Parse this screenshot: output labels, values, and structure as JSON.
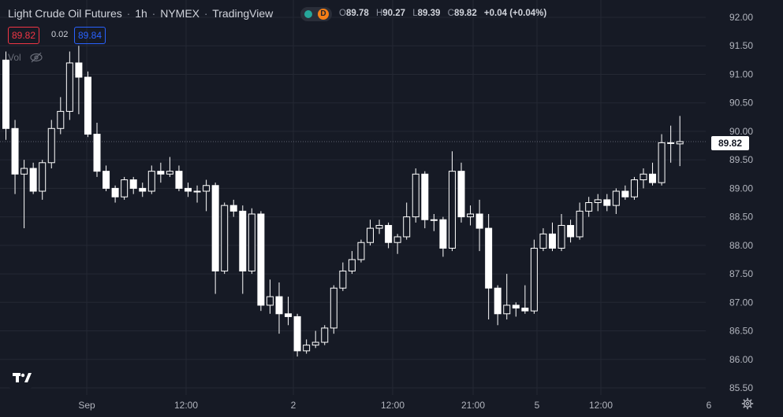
{
  "header": {
    "symbol": "Light Crude Oil Futures",
    "interval": "1h",
    "exchange": "NYMEX",
    "source": "TradingView",
    "status_letter": "D"
  },
  "ohlc": {
    "open_key": "O",
    "open": "89.78",
    "high_key": "H",
    "high": "90.27",
    "low_key": "L",
    "low": "89.39",
    "close_key": "C",
    "close": "89.82",
    "change": "+0.04 (+0.04%)"
  },
  "quote": {
    "bid": "89.82",
    "spread": "0.02",
    "ask": "89.84"
  },
  "volume_label": "Vol",
  "last_price_label": "89.82",
  "colors": {
    "background": "#161a25",
    "grid": "#242834",
    "candle": "#ffffff",
    "axis_text": "#b2b5be",
    "bid": "#f23645",
    "ask": "#2962ff"
  },
  "icons": {
    "eye": "eye-off-icon",
    "logo": "tradingview-logo-icon",
    "settings": "gear-icon"
  },
  "chart_data": {
    "type": "candlestick",
    "y_ticks": [
      "92.00",
      "91.50",
      "91.00",
      "90.50",
      "90.00",
      "89.50",
      "89.00",
      "88.50",
      "88.00",
      "87.50",
      "87.00",
      "86.50",
      "86.00",
      "85.50"
    ],
    "x_ticks": [
      "Sep",
      "12:00",
      "2",
      "12:00",
      "21:00",
      "5",
      "12:00",
      "6"
    ],
    "ylim": [
      85.4,
      92.2
    ],
    "last_price": 89.82,
    "grid": true,
    "candles": [
      [
        91.25,
        90.05,
        91.4,
        89.85
      ],
      [
        90.05,
        89.25,
        90.2,
        88.9
      ],
      [
        89.25,
        89.35,
        89.5,
        88.3
      ],
      [
        89.35,
        88.95,
        89.45,
        88.9
      ],
      [
        88.95,
        89.45,
        89.5,
        88.8
      ],
      [
        89.45,
        90.05,
        90.2,
        89.35
      ],
      [
        90.05,
        90.35,
        90.6,
        89.95
      ],
      [
        90.35,
        91.2,
        91.4,
        90.2
      ],
      [
        91.2,
        90.95,
        91.5,
        90.3
      ],
      [
        90.95,
        89.95,
        91.05,
        89.9
      ],
      [
        89.95,
        89.3,
        90.15,
        89.2
      ],
      [
        89.3,
        89.0,
        89.4,
        88.95
      ],
      [
        89.0,
        88.85,
        89.05,
        88.75
      ],
      [
        88.85,
        89.15,
        89.2,
        88.8
      ],
      [
        89.15,
        89.0,
        89.2,
        88.9
      ],
      [
        89.0,
        88.95,
        89.1,
        88.85
      ],
      [
        88.95,
        89.3,
        89.4,
        88.9
      ],
      [
        89.3,
        89.25,
        89.45,
        89.1
      ],
      [
        89.25,
        89.3,
        89.55,
        89.2
      ],
      [
        89.3,
        89.0,
        89.4,
        88.95
      ],
      [
        89.0,
        88.95,
        89.1,
        88.85
      ],
      [
        88.95,
        88.95,
        89.05,
        88.75
      ],
      [
        88.95,
        89.05,
        89.15,
        88.6
      ],
      [
        89.05,
        87.55,
        89.1,
        87.15
      ],
      [
        87.55,
        88.7,
        88.75,
        87.5
      ],
      [
        88.7,
        88.6,
        88.8,
        88.5
      ],
      [
        88.6,
        87.55,
        88.7,
        87.15
      ],
      [
        87.55,
        88.55,
        88.65,
        87.5
      ],
      [
        88.55,
        86.95,
        88.6,
        86.85
      ],
      [
        86.95,
        87.1,
        87.4,
        86.8
      ],
      [
        87.1,
        86.8,
        87.35,
        86.45
      ],
      [
        86.8,
        86.75,
        87.1,
        86.6
      ],
      [
        86.75,
        86.15,
        86.8,
        86.05
      ],
      [
        86.15,
        86.25,
        86.35,
        86.1
      ],
      [
        86.25,
        86.3,
        86.5,
        86.2
      ],
      [
        86.3,
        86.55,
        86.6,
        86.25
      ],
      [
        86.55,
        87.25,
        87.3,
        86.45
      ],
      [
        87.25,
        87.55,
        87.7,
        87.2
      ],
      [
        87.55,
        87.75,
        87.9,
        87.5
      ],
      [
        87.75,
        88.05,
        88.1,
        87.7
      ],
      [
        88.05,
        88.3,
        88.45,
        88.0
      ],
      [
        88.3,
        88.35,
        88.45,
        88.2
      ],
      [
        88.35,
        88.05,
        88.4,
        87.95
      ],
      [
        88.05,
        88.15,
        88.2,
        87.85
      ],
      [
        88.15,
        88.5,
        88.75,
        88.1
      ],
      [
        88.5,
        89.25,
        89.35,
        88.4
      ],
      [
        89.25,
        88.45,
        89.3,
        88.3
      ],
      [
        88.45,
        88.45,
        88.55,
        88.25
      ],
      [
        88.45,
        87.95,
        88.5,
        87.8
      ],
      [
        87.95,
        89.3,
        89.65,
        87.9
      ],
      [
        89.3,
        88.5,
        89.45,
        88.4
      ],
      [
        88.5,
        88.55,
        88.7,
        88.35
      ],
      [
        88.55,
        88.3,
        88.8,
        87.9
      ],
      [
        88.3,
        87.25,
        88.55,
        86.7
      ],
      [
        87.25,
        86.8,
        87.3,
        86.6
      ],
      [
        86.8,
        86.95,
        87.5,
        86.7
      ],
      [
        86.95,
        86.9,
        87.0,
        86.75
      ],
      [
        86.9,
        86.85,
        87.3,
        86.8
      ],
      [
        86.85,
        87.95,
        88.1,
        86.8
      ],
      [
        87.95,
        88.2,
        88.3,
        87.9
      ],
      [
        88.2,
        87.95,
        88.4,
        87.9
      ],
      [
        87.95,
        88.35,
        88.55,
        87.9
      ],
      [
        88.35,
        88.15,
        88.45,
        88.05
      ],
      [
        88.15,
        88.6,
        88.75,
        88.1
      ],
      [
        88.6,
        88.75,
        88.85,
        88.5
      ],
      [
        88.75,
        88.8,
        88.9,
        88.6
      ],
      [
        88.8,
        88.7,
        88.9,
        88.6
      ],
      [
        88.7,
        88.95,
        89.0,
        88.55
      ],
      [
        88.95,
        88.85,
        89.05,
        88.8
      ],
      [
        88.85,
        89.15,
        89.2,
        88.8
      ],
      [
        89.15,
        89.25,
        89.35,
        89.0
      ],
      [
        89.25,
        89.1,
        89.45,
        89.05
      ],
      [
        89.1,
        89.8,
        89.95,
        89.05
      ],
      [
        89.8,
        89.8,
        90.1,
        89.45
      ],
      [
        89.78,
        89.82,
        90.27,
        89.39
      ]
    ]
  }
}
